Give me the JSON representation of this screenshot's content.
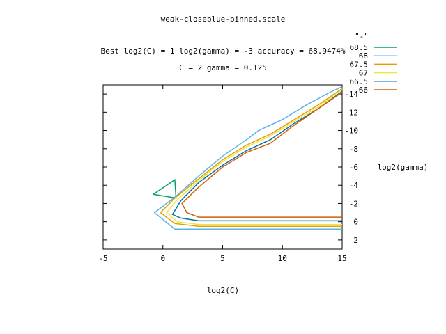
{
  "chart_data": {
    "type": "line",
    "subtype": "contour",
    "title": "weak-closeblue-binned.scale",
    "subtitle_lines": [
      "Best log2(C) = 1  log2(gamma) = -3  accuracy = 68.9474%",
      "C = 2  gamma = 0.125"
    ],
    "xlabel": "log2(C)",
    "ylabel": "log2(gamma)",
    "xlim": [
      -5,
      15
    ],
    "ylim": [
      -15,
      3
    ],
    "y_reversed": true,
    "x_ticks": [
      -5,
      0,
      5,
      10,
      15
    ],
    "y_ticks": [
      -14,
      -12,
      -10,
      -8,
      -6,
      -4,
      -2,
      0,
      2
    ],
    "grid": false,
    "legend": {
      "title": "\"-\"",
      "placement": "top-right-outside"
    },
    "series": [
      {
        "name": "68.5",
        "color": "#009e73",
        "x": [
          -0.8,
          1.0,
          1.1,
          -0.8
        ],
        "y": [
          -3,
          -4.6,
          -2.6,
          -3
        ]
      },
      {
        "name": "68",
        "color": "#56b4e9",
        "x": [
          15,
          14,
          12,
          10,
          8,
          7,
          5,
          3,
          1,
          -0.7,
          1,
          3,
          5,
          7,
          9,
          11,
          13,
          15
        ],
        "y": [
          -14.8,
          -14.2,
          -12.8,
          -11.2,
          -10,
          -9,
          -7.2,
          -5,
          -2.7,
          -1,
          0.8,
          0.8,
          0.8,
          0.8,
          0.8,
          0.8,
          0.8,
          0.8
        ]
      },
      {
        "name": "67.5",
        "color": "#e69f00",
        "x": [
          15,
          13,
          11,
          9,
          7,
          5,
          3,
          1,
          -0.2,
          1,
          3,
          5,
          7,
          9,
          11,
          13,
          15
        ],
        "y": [
          -14.6,
          -12.8,
          -11.2,
          -9.6,
          -8.4,
          -6.8,
          -4.7,
          -2.6,
          -1,
          0.2,
          0.5,
          0.5,
          0.5,
          0.5,
          0.5,
          0.5,
          0.5
        ]
      },
      {
        "name": "67",
        "color": "#f0e442",
        "x": [
          15,
          13,
          11,
          9,
          7,
          5,
          3,
          1.2,
          0.3,
          1.2,
          3,
          5,
          7,
          9,
          11,
          13,
          15
        ],
        "y": [
          -14.5,
          -12.6,
          -11,
          -9.4,
          -8.2,
          -6.6,
          -4.5,
          -2.4,
          -1,
          0,
          0.3,
          0.3,
          0.3,
          0.3,
          0.3,
          0.3,
          0.3
        ]
      },
      {
        "name": "66.5",
        "color": "#0072b2",
        "x": [
          15,
          13,
          11,
          9,
          7,
          5,
          3,
          1.5,
          0.8,
          1.5,
          3,
          5,
          7,
          9,
          11,
          13,
          15
        ],
        "y": [
          -14.3,
          -12.4,
          -10.8,
          -9,
          -7.8,
          -6.2,
          -4.3,
          -2.3,
          -0.8,
          -0.4,
          -0.1,
          -0.1,
          -0.1,
          -0.1,
          -0.1,
          -0.1,
          -0.1
        ]
      },
      {
        "name": "66",
        "color": "#d55e00",
        "x": [
          15,
          13,
          11,
          9,
          7,
          5,
          3,
          1.6,
          2,
          3,
          5,
          7,
          9,
          11,
          13,
          15
        ],
        "y": [
          -14.2,
          -12.4,
          -10.6,
          -8.6,
          -7.6,
          -6,
          -3.8,
          -2,
          -1,
          -0.5,
          -0.5,
          -0.5,
          -0.5,
          -0.5,
          -0.5,
          -0.5
        ]
      }
    ]
  }
}
